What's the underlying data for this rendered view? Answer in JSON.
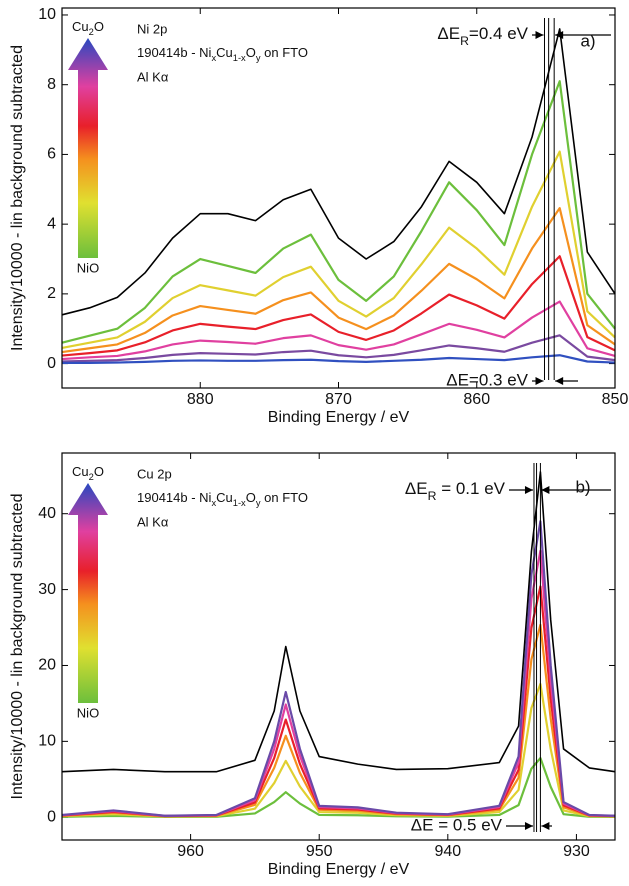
{
  "chart_data": [
    {
      "type": "line",
      "element": "Ni 2p",
      "sample": [
        "190414b - Ni",
        "x",
        "Cu",
        "1-x",
        "O",
        "y",
        " on FTO"
      ],
      "source": "Al Kα",
      "scale_top": [
        "Cu",
        "2",
        "O"
      ],
      "scale_bottom": "NiO",
      "shift_reference": [
        "ΔE",
        "R",
        "=0.4 eV"
      ],
      "shift": "ΔE=0.3 eV",
      "panel": "a)",
      "xlabel": "Binding Energy / eV",
      "ylabel": "Intensity/10000 - lin background subtracted",
      "xlim": [
        890,
        850
      ],
      "xticks": [
        880,
        870,
        860,
        850
      ],
      "ylim": [
        -0.7,
        10.2
      ],
      "yticks": [
        0,
        2,
        4,
        6,
        8,
        10
      ],
      "marker_x": [
        855.1,
        854.8,
        854.4
      ],
      "x": [
        890,
        888,
        886,
        884,
        882,
        880,
        878,
        876,
        874,
        872,
        870,
        868,
        866,
        864,
        862,
        860,
        858,
        856,
        854,
        852,
        850
      ],
      "series": [
        {
          "color": "#6cbf3c",
          "values": [
            0.6,
            0.8,
            1.0,
            1.6,
            2.5,
            3.0,
            2.8,
            2.6,
            3.3,
            3.7,
            2.4,
            1.8,
            2.5,
            3.8,
            5.2,
            4.4,
            3.4,
            6.0,
            8.1,
            2.0,
            1.0
          ]
        },
        {
          "color": "#e0d030",
          "values": [
            0.45,
            0.6,
            0.75,
            1.2,
            1.88,
            2.25,
            2.1,
            1.95,
            2.48,
            2.78,
            1.8,
            1.35,
            1.88,
            2.85,
            3.9,
            3.3,
            2.55,
            4.5,
            6.08,
            1.5,
            0.75
          ]
        },
        {
          "color": "#f5901e",
          "values": [
            0.33,
            0.44,
            0.55,
            0.88,
            1.38,
            1.65,
            1.54,
            1.43,
            1.82,
            2.04,
            1.32,
            0.99,
            1.38,
            2.09,
            2.86,
            2.42,
            1.87,
            3.3,
            4.46,
            1.1,
            0.55
          ]
        },
        {
          "color": "#e8202a",
          "values": [
            0.23,
            0.3,
            0.38,
            0.61,
            0.95,
            1.14,
            1.06,
            0.99,
            1.25,
            1.41,
            0.91,
            0.68,
            0.95,
            1.44,
            1.98,
            1.67,
            1.29,
            2.28,
            3.08,
            0.76,
            0.38
          ]
        },
        {
          "color": "#e040a0",
          "values": [
            0.13,
            0.18,
            0.22,
            0.35,
            0.55,
            0.66,
            0.62,
            0.57,
            0.73,
            0.81,
            0.53,
            0.4,
            0.55,
            0.84,
            1.14,
            0.97,
            0.75,
            1.32,
            1.78,
            0.44,
            0.22
          ]
        },
        {
          "color": "#7a4aa0",
          "values": [
            0.06,
            0.08,
            0.1,
            0.16,
            0.25,
            0.3,
            0.28,
            0.26,
            0.33,
            0.37,
            0.24,
            0.18,
            0.25,
            0.38,
            0.52,
            0.44,
            0.34,
            0.6,
            0.81,
            0.2,
            0.1
          ]
        },
        {
          "color": "#3050c0",
          "values": [
            0.02,
            0.02,
            0.03,
            0.05,
            0.08,
            0.09,
            0.08,
            0.08,
            0.1,
            0.11,
            0.07,
            0.05,
            0.08,
            0.11,
            0.16,
            0.13,
            0.1,
            0.18,
            0.24,
            0.06,
            0.03
          ]
        },
        {
          "color": "#000000",
          "values": [
            1.4,
            1.6,
            1.9,
            2.6,
            3.6,
            4.3,
            4.3,
            4.1,
            4.7,
            5.0,
            3.6,
            3.0,
            3.5,
            4.5,
            5.8,
            5.2,
            4.3,
            6.5,
            9.6,
            3.2,
            2.0
          ]
        }
      ]
    },
    {
      "type": "line",
      "element": "Cu 2p",
      "sample": [
        "190414b - Ni",
        "x",
        "Cu",
        "1-x",
        "O",
        "y",
        " on FTO"
      ],
      "source": "Al Kα",
      "scale_top": [
        "Cu",
        "2",
        "O"
      ],
      "scale_bottom": "NiO",
      "shift_reference": [
        "ΔE",
        "R",
        " = 0.1 eV"
      ],
      "shift": "ΔE = 0.5 eV",
      "panel": "b)",
      "xlabel": "Binding Energy / eV",
      "ylabel": "Intensity/10000 - lin background subtracted",
      "xlim": [
        970,
        927
      ],
      "xticks": [
        960,
        950,
        940,
        930
      ],
      "ylim": [
        -3,
        48
      ],
      "yticks": [
        0,
        10,
        20,
        30,
        40
      ],
      "marker_x": [
        933.3,
        933.1,
        932.8
      ],
      "x": [
        970,
        966,
        962,
        958,
        955,
        953.5,
        952.6,
        951.5,
        950,
        947,
        944,
        940,
        936,
        934.5,
        933.5,
        932.8,
        932,
        931,
        929,
        927
      ],
      "series": [
        {
          "color": "#6cbf3c",
          "values": [
            0.06,
            0.18,
            0.04,
            0.06,
            0.5,
            2,
            3.3,
            1.8,
            0.3,
            0.26,
            0.12,
            0.08,
            0.3,
            1.6,
            6.4,
            7.8,
            4,
            0.4,
            0.06,
            0.04
          ]
        },
        {
          "color": "#e0d030",
          "values": [
            0.14,
            0.41,
            0.09,
            0.14,
            1.13,
            4.5,
            7.43,
            4.05,
            0.68,
            0.59,
            0.27,
            0.18,
            0.68,
            3.6,
            14.4,
            17.55,
            9,
            0.9,
            0.14,
            0.09
          ]
        },
        {
          "color": "#f5901e",
          "values": [
            0.2,
            0.59,
            0.13,
            0.2,
            1.63,
            6.5,
            10.73,
            5.85,
            0.98,
            0.85,
            0.39,
            0.26,
            0.98,
            5.2,
            20.8,
            25.35,
            13,
            1.3,
            0.2,
            0.13
          ]
        },
        {
          "color": "#e8202a",
          "values": [
            0.23,
            0.7,
            0.16,
            0.23,
            1.95,
            7.8,
            12.87,
            7.02,
            1.17,
            1.01,
            0.47,
            0.31,
            1.17,
            6.24,
            24.96,
            30.42,
            15.6,
            1.56,
            0.23,
            0.16
          ]
        },
        {
          "color": "#e040a0",
          "values": [
            0.27,
            0.81,
            0.18,
            0.27,
            2.25,
            9,
            14.85,
            8.1,
            1.35,
            1.17,
            0.54,
            0.36,
            1.35,
            7.2,
            28.8,
            35.1,
            18,
            1.8,
            0.27,
            0.18
          ]
        },
        {
          "color": "#6a4aa8",
          "values": [
            0.3,
            0.9,
            0.2,
            0.3,
            2.5,
            10,
            16.5,
            9,
            1.5,
            1.3,
            0.6,
            0.4,
            1.5,
            8,
            32,
            39,
            20,
            2,
            0.3,
            0.2
          ]
        },
        {
          "color": "#000000",
          "values": [
            6,
            6.3,
            6.0,
            6.0,
            7.5,
            14,
            22.5,
            14,
            8,
            7,
            6.3,
            6.4,
            7.2,
            12,
            35,
            45.5,
            26,
            9,
            6.5,
            6.0
          ]
        }
      ]
    }
  ]
}
